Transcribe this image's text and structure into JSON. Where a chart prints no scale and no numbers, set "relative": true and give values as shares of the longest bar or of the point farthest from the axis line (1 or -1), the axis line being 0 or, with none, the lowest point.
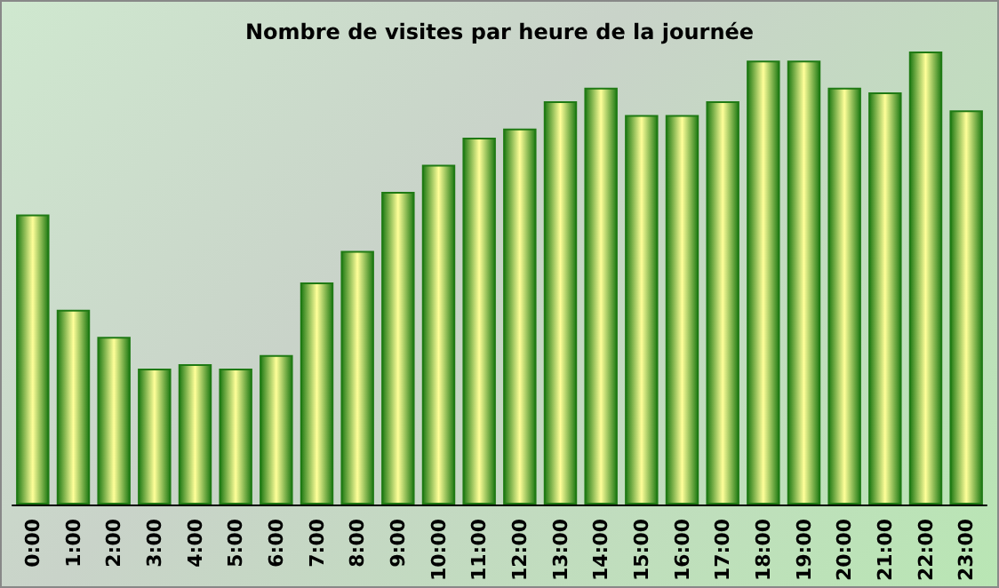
{
  "chart_data": {
    "type": "bar",
    "title": "Nombre de visites par heure de la journée",
    "relative": true,
    "categories": [
      "0:00",
      "1:00",
      "2:00",
      "3:00",
      "4:00",
      "5:00",
      "6:00",
      "7:00",
      "8:00",
      "9:00",
      "10:00",
      "11:00",
      "12:00",
      "13:00",
      "14:00",
      "15:00",
      "16:00",
      "17:00",
      "18:00",
      "19:00",
      "20:00",
      "21:00",
      "22:00",
      "23:00"
    ],
    "values": [
      0.64,
      0.43,
      0.37,
      0.3,
      0.31,
      0.3,
      0.33,
      0.49,
      0.56,
      0.69,
      0.75,
      0.81,
      0.83,
      0.89,
      0.92,
      0.86,
      0.86,
      0.89,
      0.98,
      0.98,
      0.92,
      0.91,
      1,
      0.87
    ],
    "color": "#1f7a14"
  }
}
